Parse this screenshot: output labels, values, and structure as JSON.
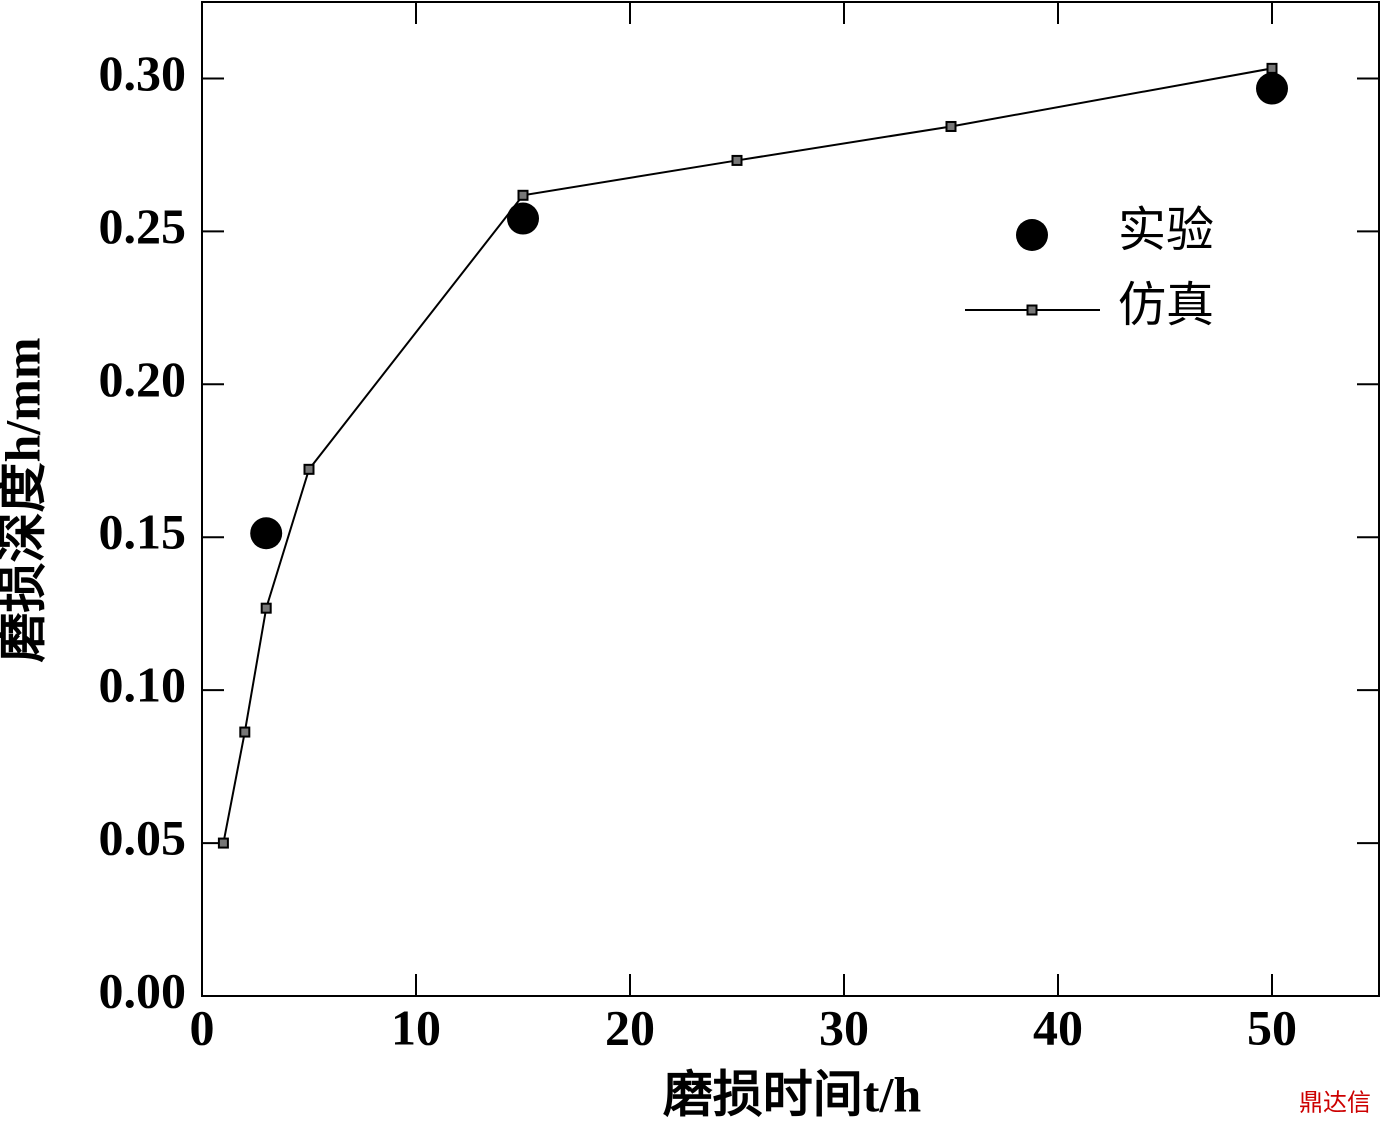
{
  "chart_data": {
    "type": "line",
    "xlabel": "磨损时间t/h",
    "ylabel": "磨损深度h/mm",
    "watermark": "鼎达信",
    "xlim": [
      0,
      55
    ],
    "xticks": [
      0,
      10,
      20,
      30,
      40,
      50
    ],
    "ylim": [
      0,
      0.325
    ],
    "yticks": [
      {
        "value": 0,
        "label": "0.00"
      },
      {
        "value": 0.05,
        "label": "0.05"
      },
      {
        "value": 0.1,
        "label": "0.10"
      },
      {
        "value": 0.15,
        "label": "0.15"
      },
      {
        "value": 0.2,
        "label": "0.20"
      },
      {
        "value": 0.25,
        "label": "0.25"
      },
      {
        "value": 0.3,
        "label": "0.30"
      }
    ],
    "legend": "upper right",
    "series": [
      {
        "name": "实验",
        "mode": "markers",
        "color": "#000000",
        "x": [
          3,
          15,
          50
        ],
        "values": [
          0.1513,
          0.2542,
          0.2967
        ]
      },
      {
        "name": "仿真",
        "mode": "lines+markers",
        "color": "#000000",
        "x": [
          1,
          2,
          3,
          5,
          15,
          25,
          35,
          50
        ],
        "values": [
          0.05,
          0.0863,
          0.1268,
          0.1722,
          0.2618,
          0.2732,
          0.2843,
          0.3033
        ]
      }
    ]
  }
}
